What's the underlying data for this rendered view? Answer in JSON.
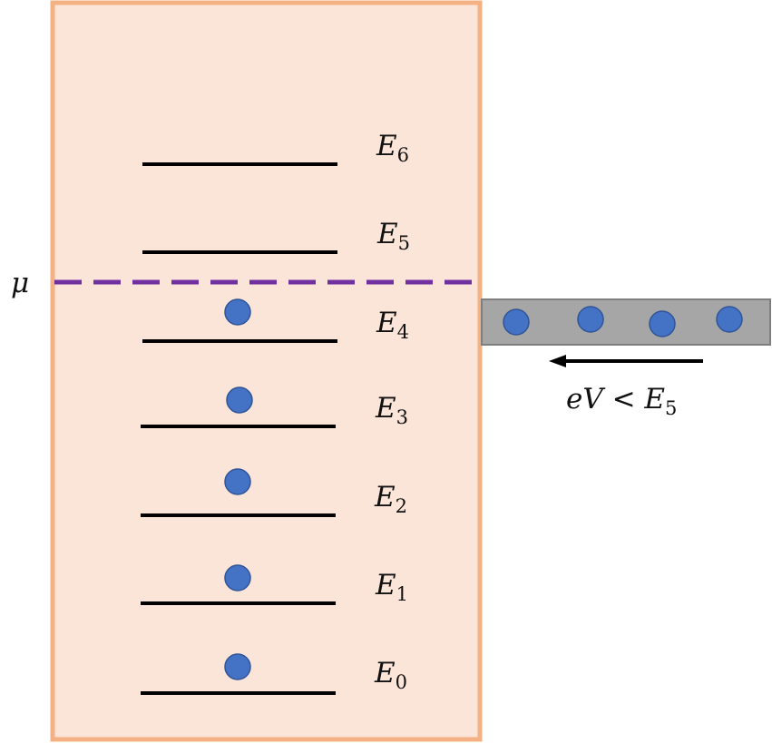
{
  "colors": {
    "box_fill": "#fbe5d8",
    "box_border": "#f4b183",
    "level_line": "#000000",
    "electron_fill": "#4472c4",
    "electron_stroke": "#2f5597",
    "mu_line": "#7030a0",
    "lead_fill": "#a6a6a6",
    "lead_stroke": "#7f7f7f",
    "arrow": "#000000"
  },
  "mu_label": "μ",
  "levels": [
    {
      "name": "E",
      "sub": "0",
      "occupied": true
    },
    {
      "name": "E",
      "sub": "1",
      "occupied": true
    },
    {
      "name": "E",
      "sub": "2",
      "occupied": true
    },
    {
      "name": "E",
      "sub": "3",
      "occupied": true
    },
    {
      "name": "E",
      "sub": "4",
      "occupied": true
    },
    {
      "name": "E",
      "sub": "5",
      "occupied": false
    },
    {
      "name": "E",
      "sub": "6",
      "occupied": false
    }
  ],
  "lead": {
    "electron_count": 4
  },
  "bias_label": {
    "main": "eV < E",
    "sub": "5"
  }
}
